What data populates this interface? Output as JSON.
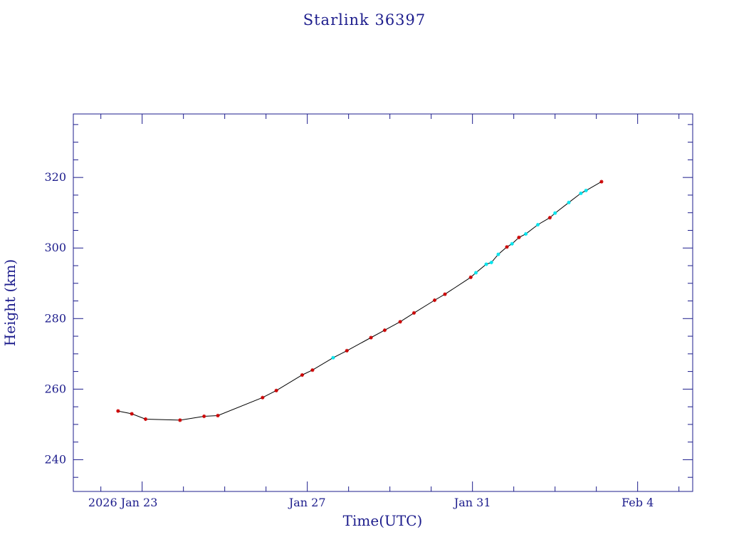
{
  "chart_data": {
    "type": "line",
    "title": "Starlink 36397",
    "xlabel": "Time(UTC)",
    "ylabel": "Height (km)",
    "xlim": [
      "2026-01-21T08:00",
      "2026-02-05T08:00"
    ],
    "ylim": [
      231,
      338
    ],
    "x_ticks": [
      {
        "label": "2026 Jan 23",
        "x": "2026-01-23T00:00"
      },
      {
        "label": "Jan 27",
        "x": "2026-01-27T00:00"
      },
      {
        "label": "Jan 31",
        "x": "2026-01-31T00:00"
      },
      {
        "label": "Feb  4",
        "x": "2026-02-04T00:00"
      }
    ],
    "y_ticks": [
      240,
      260,
      280,
      300,
      320
    ],
    "grid": false,
    "colors": {
      "axis": "#1c1c8c",
      "line": "#000000",
      "marker_red": "#cc0000",
      "marker_cyan": "#00e5ee"
    },
    "series": [
      {
        "marker_color": "red",
        "points": [
          [
            "2026-01-22T10:00",
            253.8
          ],
          [
            "2026-01-22T18:00",
            253.0
          ],
          [
            "2026-01-23T02:00",
            251.5
          ],
          [
            "2026-01-23T22:00",
            251.2
          ],
          [
            "2026-01-24T12:00",
            252.3
          ],
          [
            "2026-01-24T20:00",
            252.5
          ],
          [
            "2026-01-25T22:00",
            257.6
          ],
          [
            "2026-01-26T06:00",
            259.6
          ],
          [
            "2026-01-26T21:00",
            264.0
          ],
          [
            "2026-01-27T03:00",
            265.4
          ],
          [
            "2026-01-27T23:00",
            270.9
          ],
          [
            "2026-01-28T13:00",
            274.6
          ],
          [
            "2026-01-28T21:00",
            276.7
          ],
          [
            "2026-01-29T06:00",
            279.1
          ],
          [
            "2026-01-29T14:00",
            281.6
          ],
          [
            "2026-01-30T02:00",
            285.2
          ],
          [
            "2026-01-30T08:00",
            286.9
          ],
          [
            "2026-01-30T23:00",
            291.7
          ],
          [
            "2026-01-31T20:00",
            300.3
          ],
          [
            "2026-02-01T03:00",
            303.0
          ],
          [
            "2026-02-01T21:00",
            308.6
          ],
          [
            "2026-02-03T03:00",
            318.8
          ]
        ]
      },
      {
        "marker_color": "cyan",
        "points": [
          [
            "2026-01-27T15:00",
            268.9
          ],
          [
            "2026-01-31T02:00",
            293.0
          ],
          [
            "2026-01-31T08:00",
            295.4
          ],
          [
            "2026-01-31T11:00",
            295.9
          ],
          [
            "2026-01-31T15:00",
            298.2
          ],
          [
            "2026-01-31T23:00",
            301.2
          ],
          [
            "2026-02-01T07:00",
            304.0
          ],
          [
            "2026-02-01T14:00",
            306.6
          ],
          [
            "2026-02-02T00:00",
            309.9
          ],
          [
            "2026-02-02T08:00",
            312.9
          ],
          [
            "2026-02-02T15:00",
            315.5
          ],
          [
            "2026-02-02T18:00",
            316.3
          ]
        ]
      }
    ]
  }
}
